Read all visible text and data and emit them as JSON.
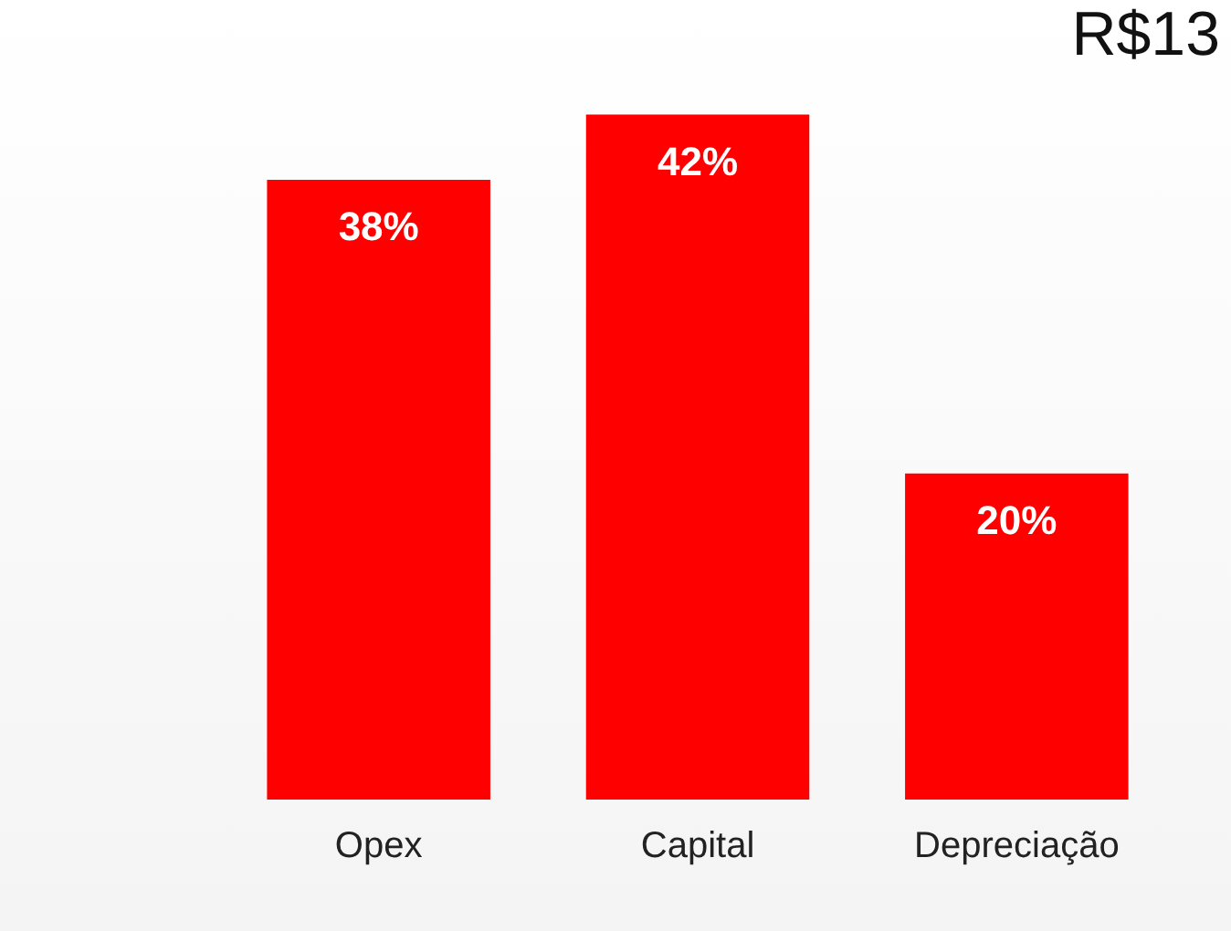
{
  "chart_data": {
    "type": "bar",
    "categories": [
      "Opex",
      "Capital",
      "Depreciação"
    ],
    "values": [
      38,
      42,
      20
    ],
    "color": "#ff0000",
    "value_labels": [
      "38%",
      "42%",
      "20%"
    ],
    "annotations": [
      "R$13"
    ],
    "grid": false,
    "legend": false
  }
}
